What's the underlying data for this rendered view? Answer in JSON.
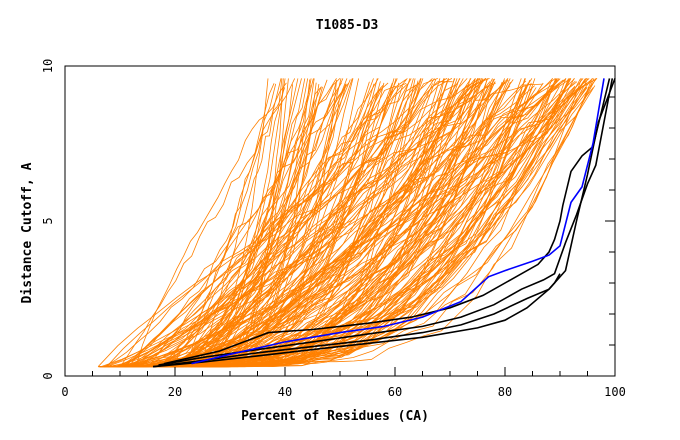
{
  "chart_data": {
    "type": "line",
    "title": "T1085-D3",
    "xlabel": "Percent of Residues (CA)",
    "ylabel": "Distance Cutoff, A",
    "xlim": [
      0,
      100
    ],
    "ylim": [
      0,
      10
    ],
    "x_ticks": [
      "0",
      "20",
      "40",
      "60",
      "80",
      "100"
    ],
    "y_ticks": [
      "0",
      "5",
      "10"
    ],
    "grid": false,
    "colors": {
      "background_models": "#ff8000",
      "highlight_black": "#000000",
      "highlight_blue": "#0000ff"
    },
    "series": [
      {
        "color": "#0000ff",
        "x": [
          23,
          30,
          40,
          50,
          58,
          65,
          72,
          77,
          80,
          85,
          88,
          90,
          92,
          94,
          96,
          98
        ],
        "y": [
          0.4,
          0.7,
          1.1,
          1.4,
          1.6,
          1.9,
          2.4,
          3.2,
          3.4,
          3.7,
          3.9,
          4.2,
          5.6,
          6.1,
          7.5,
          9.6
        ]
      },
      {
        "color": "#000000",
        "x": [
          18,
          28,
          37,
          45,
          55,
          63,
          70,
          76,
          81,
          86,
          88,
          89,
          90,
          90.5,
          92,
          94,
          96,
          99
        ],
        "y": [
          0.4,
          0.8,
          1.4,
          1.5,
          1.7,
          1.9,
          2.2,
          2.6,
          3.1,
          3.6,
          4.0,
          4.4,
          5.0,
          5.5,
          6.6,
          7.1,
          7.4,
          9.6
        ]
      },
      {
        "color": "#000000",
        "x": [
          17,
          25,
          35,
          45,
          55,
          65,
          72,
          78,
          83,
          87,
          89,
          91,
          93,
          95,
          96.5,
          99.5
        ],
        "y": [
          0.35,
          0.6,
          0.85,
          1.1,
          1.35,
          1.6,
          1.9,
          2.3,
          2.8,
          3.1,
          3.3,
          4.3,
          5.2,
          6.2,
          6.8,
          9.6
        ]
      },
      {
        "color": "#000000",
        "x": [
          16,
          25,
          35,
          45,
          55,
          65,
          72,
          78,
          84,
          88,
          89,
          90
        ],
        "y": [
          0.3,
          0.5,
          0.75,
          0.95,
          1.15,
          1.4,
          1.65,
          2.0,
          2.5,
          2.8,
          3.0,
          3.3
        ]
      },
      {
        "color": "#000000",
        "x": [
          16,
          25,
          35,
          45,
          55,
          65,
          75,
          80,
          84,
          88,
          91,
          93,
          95,
          97,
          100
        ],
        "y": [
          0.3,
          0.45,
          0.65,
          0.85,
          1.05,
          1.25,
          1.55,
          1.8,
          2.2,
          2.8,
          3.4,
          5.0,
          6.5,
          8.2,
          9.6
        ]
      }
    ]
  }
}
